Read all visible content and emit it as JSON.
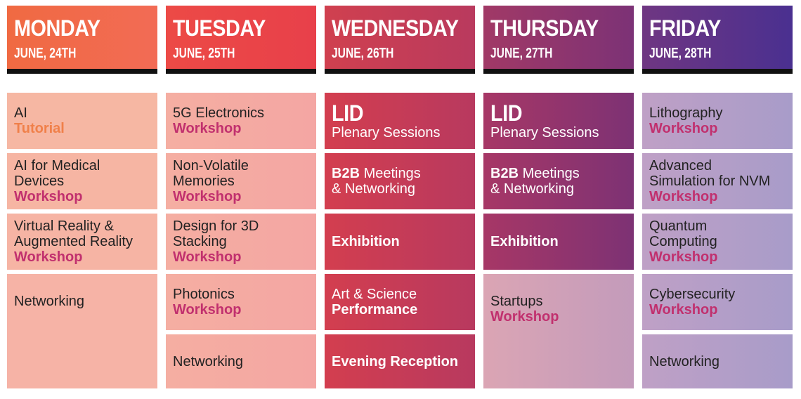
{
  "days": [
    {
      "name": "MONDAY",
      "date": "JUNE, 24TH"
    },
    {
      "name": "TUESDAY",
      "date": "JUNE, 25TH"
    },
    {
      "name": "WEDNESDAY",
      "date": "JUNE, 26TH"
    },
    {
      "name": "THURSDAY",
      "date": "JUNE, 27TH"
    },
    {
      "name": "FRIDAY",
      "date": "JUNE, 28TH"
    }
  ],
  "monday": {
    "s1_title": "AI",
    "s1_type": "Tutorial",
    "s2_l1": "AI for Medical",
    "s2_l2": "Devices",
    "s2_type": "Workshop",
    "s3_l1": "Virtual Reality &",
    "s3_l2": "Augmented Reality",
    "s3_type": "Workshop",
    "s4_title": "Networking"
  },
  "tuesday": {
    "s1_title": "5G Electronics",
    "s1_type": "Workshop",
    "s2_l1": "Non-Volatile",
    "s2_l2": "Memories",
    "s2_type": "Workshop",
    "s3_l1": "Design for 3D",
    "s3_l2": "Stacking",
    "s3_type": "Workshop",
    "s4_title": "Photonics",
    "s4_type": "Workshop",
    "s5_title": "Networking"
  },
  "wednesday": {
    "s1_big": "LID",
    "s1_sub": "Plenary Sessions",
    "s2_bold": "B2B",
    "s2_rest": " Meetings",
    "s2_l2": "& Networking",
    "s3_title": "Exhibition",
    "s4_l1": "Art & Science",
    "s4_l2": "Performance",
    "s5_title": "Evening Reception"
  },
  "thursday": {
    "s1_big": "LID",
    "s1_sub": "Plenary Sessions",
    "s2_bold": "B2B",
    "s2_rest": " Meetings",
    "s2_l2": "& Networking",
    "s3_title": "Exhibition",
    "s4_title": "Startups",
    "s4_type": "Workshop"
  },
  "friday": {
    "s1_title": "Lithography",
    "s1_type": "Workshop",
    "s2_l1": "Advanced",
    "s2_l2": "Simulation for NVM",
    "s2_type": "Workshop",
    "s3_l1": "Quantum",
    "s3_l2": "Computing",
    "s3_type": "Workshop",
    "s4_title": "Cybersecurity",
    "s4_type": "Workshop",
    "s5_title": "Networking"
  },
  "colors": {
    "monday_header": "#f26a4b",
    "tuesday_header": "#e8434a",
    "wednesday_header": "#c83e5a",
    "thursday_header": "#8e3670",
    "friday_header": "#5a348c",
    "accent_pink": "#c1306e",
    "accent_orange": "#f0804a"
  }
}
